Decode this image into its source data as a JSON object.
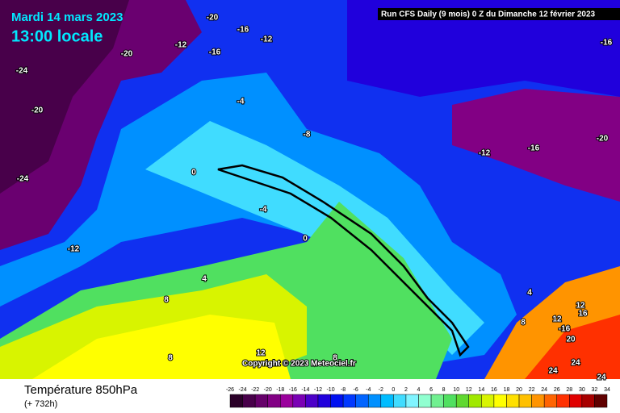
{
  "header": {
    "date": "Mardi 14 mars 2023",
    "time": "13:00 locale",
    "run": "Run CFS Daily (9 mois) 0 Z du Dimanche 12 février 2023"
  },
  "map": {
    "contour_labels": [
      -20,
      -16,
      -12,
      -12,
      -16,
      -20,
      -24,
      -20,
      -24,
      -12,
      -4,
      -8,
      0,
      -4,
      0,
      4,
      8,
      8,
      12,
      8,
      -16,
      -12,
      -16,
      -20,
      4,
      12,
      16,
      12,
      -16,
      20,
      8,
      24,
      24,
      24
    ],
    "copyright": "Copyright © 2023 Meteociel.fr"
  },
  "footer": {
    "title": "Température 850hPa",
    "lead": "(+ 732h)"
  },
  "legend": {
    "ticks": [
      -26,
      -24,
      -22,
      -20,
      -18,
      -16,
      -14,
      -12,
      -10,
      -8,
      -6,
      -4,
      -2,
      0,
      2,
      4,
      6,
      8,
      10,
      12,
      14,
      16,
      18,
      20,
      22,
      24,
      26,
      28,
      30,
      32,
      34
    ],
    "colors": [
      "#2a0028",
      "#48004a",
      "#66006a",
      "#820084",
      "#9a009c",
      "#7a00b4",
      "#4c00c8",
      "#2000dc",
      "#0010f0",
      "#0038ff",
      "#0064ff",
      "#0090ff",
      "#00bcff",
      "#40dcff",
      "#80f4ff",
      "#90ffd0",
      "#70f090",
      "#50e060",
      "#60d830",
      "#a0e800",
      "#d8f400",
      "#ffff00",
      "#ffe000",
      "#ffc000",
      "#ff9400",
      "#ff6400",
      "#ff3000",
      "#e00000",
      "#a80000",
      "#600000"
    ]
  }
}
